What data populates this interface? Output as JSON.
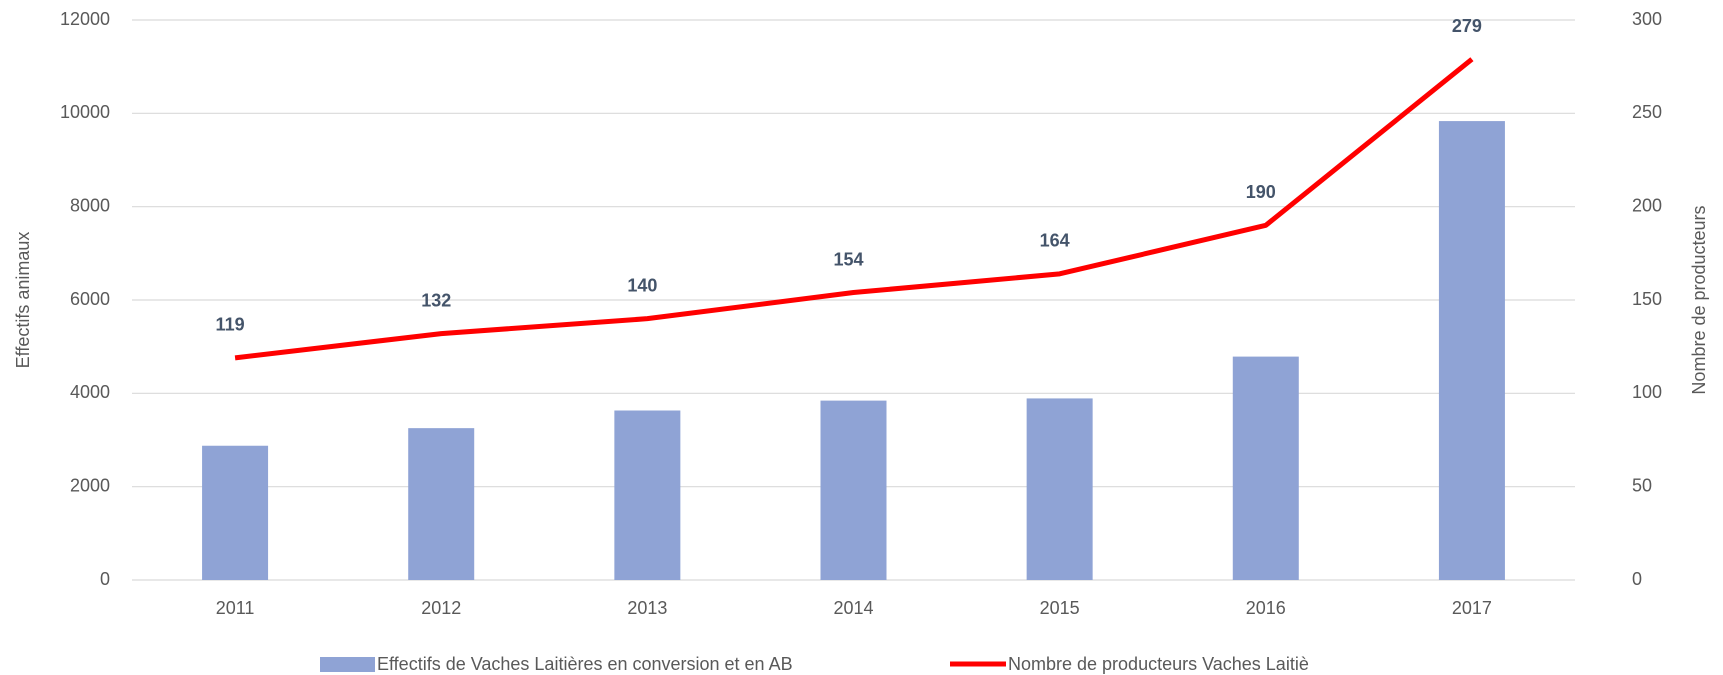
{
  "chart_data": {
    "type": "bar_line",
    "categories": [
      "2011",
      "2012",
      "2013",
      "2014",
      "2015",
      "2016",
      "2017"
    ],
    "series": [
      {
        "name": "Effectifs de Vaches Laitières en conversion et en AB",
        "color": "#8fa3d5",
        "type": "bar",
        "values": [
          2877,
          3254,
          3632,
          3844,
          3891,
          4787,
          9834
        ]
      },
      {
        "name": "Nombre de producteurs Vaches Laitiè",
        "color": "#ff0000",
        "type": "line",
        "axis": "y2",
        "values": [
          119,
          132,
          140,
          154,
          164,
          190,
          279
        ]
      }
    ],
    "ylabel": "Effectifs animaux",
    "y2label": "Nombre de producteurs",
    "ylim": [
      0,
      12000
    ],
    "yticks": [
      0,
      2000,
      4000,
      6000,
      8000,
      10000,
      12000
    ],
    "y2lim": [
      0,
      300
    ],
    "y2ticks": [
      0,
      50,
      100,
      150,
      200,
      250,
      300
    ],
    "grid": true,
    "legend": "bottom"
  }
}
